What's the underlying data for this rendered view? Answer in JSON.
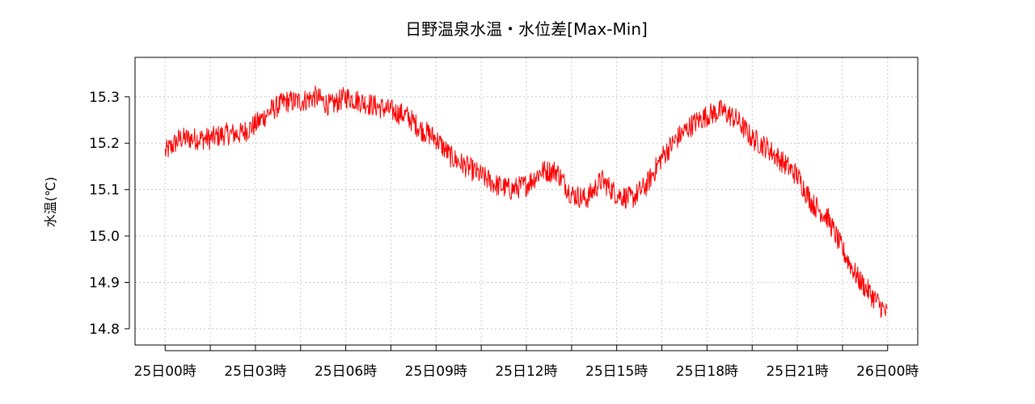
{
  "chart_data": {
    "type": "line",
    "title": "日野温泉水温・水位差[Max-Min]",
    "ylabel": "水温(℃)",
    "xlabel": "",
    "x_tick_labels": [
      "25日00時",
      "25日03時",
      "25日06時",
      "25日09時",
      "25日12時",
      "25日15時",
      "25日18時",
      "25日21時",
      "26日00時"
    ],
    "x_range_hours": [
      -1,
      25
    ],
    "ylim": [
      14.765,
      15.385
    ],
    "y_ticks": [
      14.8,
      14.9,
      15.0,
      15.1,
      15.2,
      15.3
    ],
    "y_tick_labels": [
      "14.8",
      "14.9",
      "15.0",
      "15.1",
      "15.2",
      "15.3"
    ],
    "grid": true,
    "legend": "none",
    "line_color": "#ff0000",
    "series": [
      {
        "x_hours": [
          0,
          0.5,
          1,
          1.5,
          2,
          2.5,
          3,
          3.5,
          4,
          4.5,
          5,
          5.5,
          6,
          6.5,
          7,
          7.5,
          8,
          8.5,
          9,
          9.5,
          10,
          10.5,
          11,
          11.5,
          12,
          12.5,
          13,
          13.5,
          14,
          14.5,
          15,
          15.5,
          16,
          16.5,
          17,
          17.5,
          18,
          18.5,
          19,
          19.5,
          20,
          20.5,
          21,
          21.5,
          22,
          22.5,
          23,
          23.5,
          24
        ],
        "values": [
          15.18,
          15.21,
          15.21,
          15.21,
          15.22,
          15.22,
          15.24,
          15.27,
          15.29,
          15.29,
          15.3,
          15.28,
          15.3,
          15.29,
          15.28,
          15.27,
          15.26,
          15.23,
          15.21,
          15.17,
          15.15,
          15.13,
          15.11,
          15.1,
          15.11,
          15.14,
          15.14,
          15.09,
          15.08,
          15.12,
          15.09,
          15.08,
          15.11,
          15.17,
          15.21,
          15.24,
          15.26,
          15.27,
          15.25,
          15.21,
          15.19,
          15.16,
          15.13,
          15.07,
          15.04,
          14.97,
          14.91,
          14.87,
          14.83
        ]
      }
    ]
  }
}
